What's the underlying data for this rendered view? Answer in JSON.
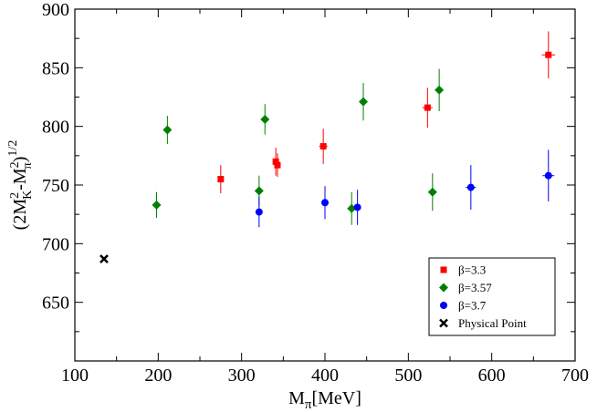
{
  "chart_data": {
    "type": "scatter",
    "xlabel": "M",
    "xlabel_sub": "π",
    "xlabel_unit": "[MeV]",
    "ylabel_parts": {
      "open": "(2M",
      "k_sub": "K",
      "sup2a": "2",
      "minus": "-M",
      "pi_sub": "π",
      "sup2b": "2",
      "close": ")",
      "half": "1/2"
    },
    "xlim": [
      100,
      700
    ],
    "ylim": [
      600,
      900
    ],
    "xticks": [
      100,
      200,
      300,
      400,
      500,
      600,
      700
    ],
    "yticks": [
      650,
      700,
      750,
      800,
      850,
      900
    ],
    "legend_position": "bottom-right",
    "series": [
      {
        "name": "β=3.3",
        "marker": "square",
        "color": "#ff0000",
        "points": [
          {
            "x": 275,
            "y": 755,
            "xerr": 3,
            "yerr": 12
          },
          {
            "x": 341,
            "y": 770,
            "xerr": 3,
            "yerr": 12
          },
          {
            "x": 343,
            "y": 767,
            "xerr": 4,
            "yerr": 10
          },
          {
            "x": 398,
            "y": 783,
            "xerr": 5,
            "yerr": 15
          },
          {
            "x": 523,
            "y": 816,
            "xerr": 6,
            "yerr": 17
          },
          {
            "x": 668,
            "y": 861,
            "xerr": 8,
            "yerr": 20
          }
        ]
      },
      {
        "name": "β=3.57",
        "marker": "diamond",
        "color": "#008000",
        "points": [
          {
            "x": 198,
            "y": 733,
            "xerr": 2,
            "yerr": 11
          },
          {
            "x": 211,
            "y": 797,
            "xerr": 2,
            "yerr": 12
          },
          {
            "x": 321,
            "y": 745,
            "xerr": 3,
            "yerr": 13
          },
          {
            "x": 328,
            "y": 806,
            "xerr": 3,
            "yerr": 13
          },
          {
            "x": 432,
            "y": 730,
            "xerr": 4,
            "yerr": 14
          },
          {
            "x": 446,
            "y": 821,
            "xerr": 4,
            "yerr": 16
          },
          {
            "x": 529,
            "y": 744,
            "xerr": 5,
            "yerr": 16
          },
          {
            "x": 537,
            "y": 831,
            "xerr": 5,
            "yerr": 18
          }
        ]
      },
      {
        "name": "β=3.7",
        "marker": "circle",
        "color": "#0000ff",
        "points": [
          {
            "x": 321,
            "y": 727,
            "xerr": 3,
            "yerr": 13
          },
          {
            "x": 400,
            "y": 735,
            "xerr": 4,
            "yerr": 14
          },
          {
            "x": 439,
            "y": 731,
            "xerr": 4,
            "yerr": 15
          },
          {
            "x": 575,
            "y": 748,
            "xerr": 6,
            "yerr": 19
          },
          {
            "x": 668,
            "y": 758,
            "xerr": 7,
            "yerr": 22
          }
        ]
      },
      {
        "name": "Physical Point",
        "marker": "x",
        "color": "#000000",
        "points": [
          {
            "x": 135,
            "y": 687,
            "xerr": 0,
            "yerr": 0
          }
        ]
      }
    ]
  }
}
